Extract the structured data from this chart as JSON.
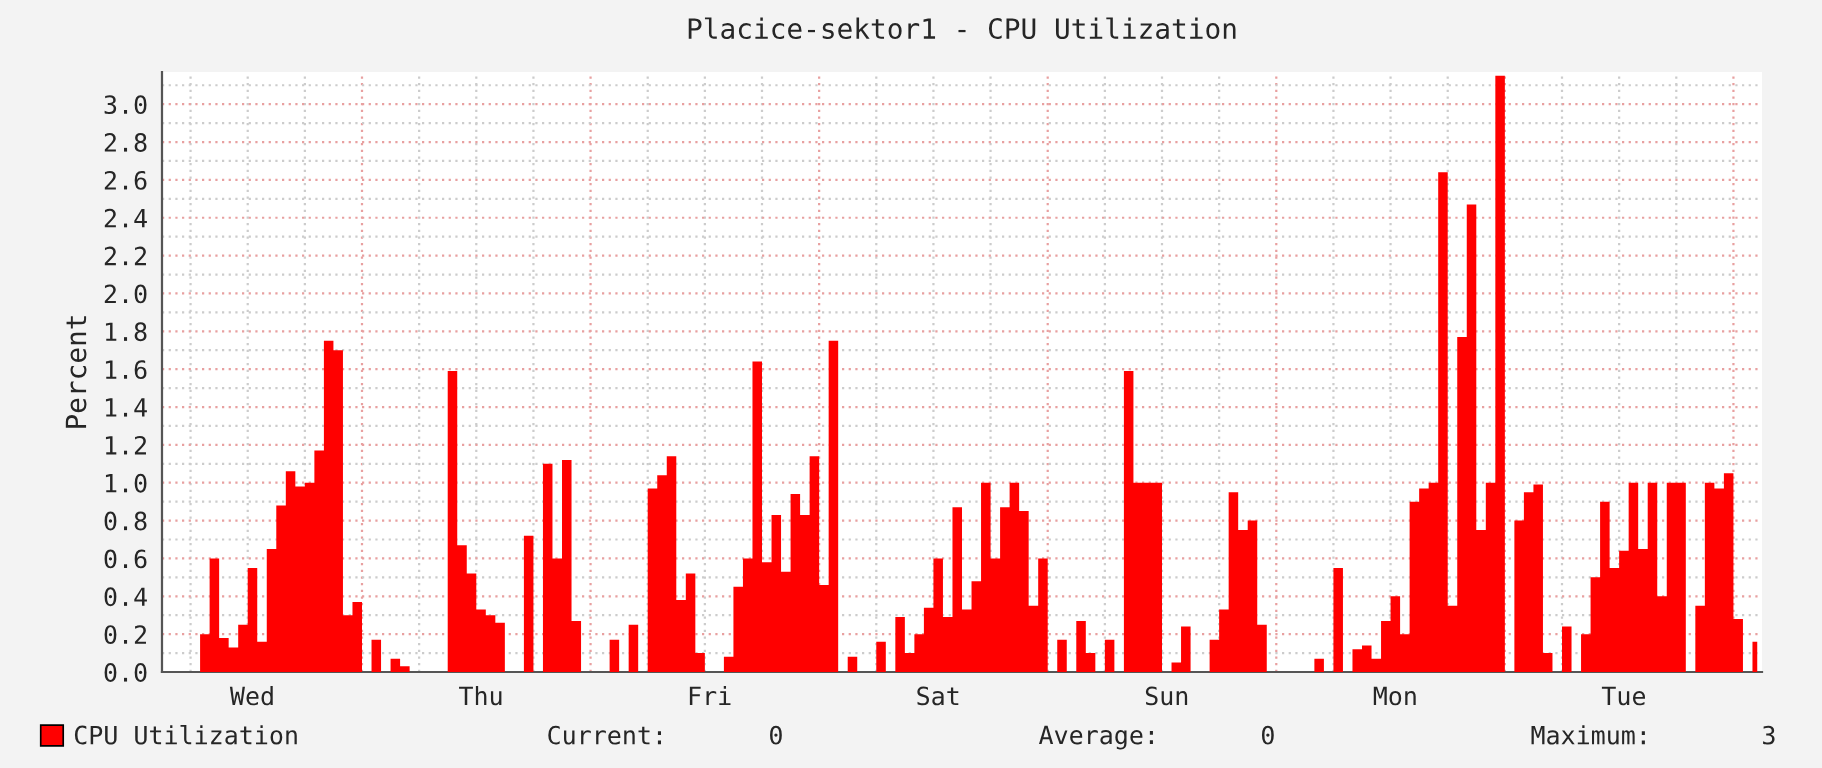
{
  "chart_data": {
    "type": "area",
    "title": "Placice-sektor1 - CPU Utilization",
    "ylabel": "Percent",
    "ylim": [
      0,
      3.17
    ],
    "categories": [
      null,
      null,
      null,
      null,
      null,
      null,
      null,
      null,
      null,
      "Wed",
      null,
      null,
      null,
      null,
      null,
      null,
      null,
      null,
      null,
      null,
      null,
      null,
      null,
      null,
      null,
      null,
      null,
      null,
      null,
      null,
      null,
      null,
      null,
      "Thu",
      null,
      null,
      null,
      null,
      null,
      null,
      null,
      null,
      null,
      null,
      null,
      null,
      null,
      null,
      null,
      null,
      null,
      null,
      null,
      null,
      null,
      null,
      null,
      "Fri",
      null,
      null,
      null,
      null,
      null,
      null,
      null,
      null,
      null,
      null,
      null,
      null,
      null,
      null,
      null,
      null,
      null,
      null,
      null,
      null,
      null,
      null,
      null,
      "Sat",
      null,
      null,
      null,
      null,
      null,
      null,
      null,
      null,
      null,
      null,
      null,
      null,
      null,
      null,
      null,
      null,
      null,
      null,
      null,
      null,
      null,
      null,
      null,
      "Sun",
      null,
      null,
      null,
      null,
      null,
      null,
      null,
      null,
      null,
      null,
      null,
      null,
      null,
      null,
      null,
      null,
      null,
      null,
      null,
      null,
      null,
      null,
      null,
      "Mon",
      null,
      null,
      null,
      null,
      null,
      null,
      null,
      null,
      null,
      null,
      null,
      null,
      null,
      null,
      null,
      null,
      null,
      null,
      null,
      null,
      null,
      null,
      null,
      "Tue",
      null,
      null,
      null,
      null,
      null,
      null,
      null,
      null,
      null,
      null,
      null,
      null,
      null,
      null
    ],
    "yticks": [
      {
        "value": 0,
        "label": "0.0"
      },
      {
        "value": 0.1,
        "label": null
      },
      {
        "value": 0.2,
        "label": "0.2"
      },
      {
        "value": 0.3,
        "label": null
      },
      {
        "value": 0.4,
        "label": "0.4"
      },
      {
        "value": 0.5,
        "label": null
      },
      {
        "value": 0.6,
        "label": "0.6"
      },
      {
        "value": 0.7,
        "label": null
      },
      {
        "value": 0.8,
        "label": "0.8"
      },
      {
        "value": 0.9,
        "label": null
      },
      {
        "value": 1.0,
        "label": "1.0"
      },
      {
        "value": 1.1,
        "label": null
      },
      {
        "value": 1.2,
        "label": "1.2"
      },
      {
        "value": 1.3,
        "label": null
      },
      {
        "value": 1.4,
        "label": "1.4"
      },
      {
        "value": 1.5,
        "label": null
      },
      {
        "value": 1.6,
        "label": "1.6"
      },
      {
        "value": 1.7,
        "label": null
      },
      {
        "value": 1.8,
        "label": "1.8"
      },
      {
        "value": 1.9,
        "label": null
      },
      {
        "value": 2.0,
        "label": "2.0"
      },
      {
        "value": 2.1,
        "label": null
      },
      {
        "value": 2.2,
        "label": "2.2"
      },
      {
        "value": 2.3,
        "label": null
      },
      {
        "value": 2.4,
        "label": "2.4"
      },
      {
        "value": 2.5,
        "label": null
      },
      {
        "value": 2.6,
        "label": "2.6"
      },
      {
        "value": 2.7,
        "label": null
      },
      {
        "value": 2.8,
        "label": "2.8"
      },
      {
        "value": 2.9,
        "label": null
      },
      {
        "value": 3.0,
        "label": "3.0"
      },
      {
        "value": 3.1,
        "label": null
      }
    ],
    "grid": true,
    "legend": "bottom left",
    "annotations": [
      "Current:",
      "0",
      "Average:",
      "0",
      "Maximum:",
      "3"
    ],
    "series": [
      {
        "name": "CPU Utilization",
        "color": "#ff0000",
        "values": [
          0,
          0,
          0,
          0,
          0.2,
          0.6,
          0.18,
          0.13,
          0.25,
          0.55,
          0.16,
          0.65,
          0.88,
          1.06,
          0.98,
          1.0,
          1.17,
          1.75,
          1.7,
          0.3,
          0.37,
          0,
          0.17,
          0,
          0.07,
          0.03,
          0,
          0,
          0,
          0,
          1.59,
          0.67,
          0.52,
          0.33,
          0.3,
          0.26,
          0,
          0,
          0.72,
          0,
          1.1,
          0.6,
          1.12,
          0.27,
          0,
          0,
          0,
          0.17,
          0,
          0.25,
          0,
          0.97,
          1.04,
          1.14,
          0.38,
          0.52,
          0.1,
          0,
          0,
          0.08,
          0.45,
          0.6,
          1.64,
          0.58,
          0.83,
          0.53,
          0.94,
          0.83,
          1.14,
          0.46,
          1.75,
          0,
          0.08,
          0,
          0,
          0.16,
          0,
          0.29,
          0.1,
          0.2,
          0.34,
          0.6,
          0.29,
          0.87,
          0.33,
          0.48,
          1.0,
          0.6,
          0.87,
          1.0,
          0.85,
          0.35,
          0.6,
          0,
          0.17,
          0,
          0.27,
          0.1,
          0,
          0.17,
          0,
          1.59,
          1.0,
          1.0,
          1.0,
          0,
          0.05,
          0.24,
          0,
          0,
          0.17,
          0.33,
          0.95,
          0.75,
          0.8,
          0.25,
          0,
          0,
          0,
          0,
          0,
          0.07,
          0,
          0.55,
          0,
          0.12,
          0.14,
          0.07,
          0.27,
          0.4,
          0.2,
          0.9,
          0.97,
          1.0,
          2.64,
          0.35,
          1.77,
          2.47,
          0.75,
          1.0,
          3.15,
          0,
          0.8,
          0.95,
          0.99,
          0.1,
          0,
          0.24,
          0,
          0.2,
          0.5,
          0.9,
          0.55,
          0.64,
          1.0,
          0.65,
          1.0,
          0.4,
          1.0,
          1.0,
          0,
          0.35,
          1.0,
          0.97,
          1.05,
          0.28,
          0,
          0.16
        ]
      }
    ]
  }
}
